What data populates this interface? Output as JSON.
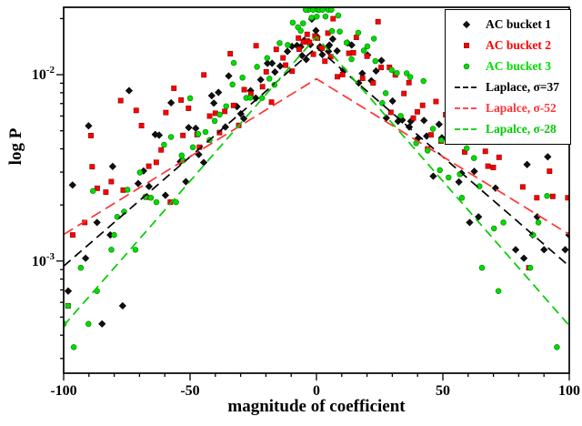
{
  "chart_data": {
    "type": "scatter",
    "title": "",
    "xlabel": "magnitude of coefficient",
    "ylabel": "log P",
    "xlim": [
      -100,
      100
    ],
    "ylog_min": 0.00025,
    "ylog_max": 0.023,
    "xticks": [
      -100,
      -50,
      0,
      50,
      100
    ],
    "x_minor_step": 10,
    "y_major_exponents": [
      -3,
      -2
    ],
    "grid": false,
    "legend_position": "top-right",
    "quant_step": 0.000115,
    "scatter_series": [
      {
        "name": "AC bucket 1",
        "marker": "diamond",
        "color": "#111111",
        "edge": "#000000",
        "peak": 0.018,
        "sigma": 36,
        "seed": 101,
        "noise_base": 0.15,
        "noise_tail": 0.6
      },
      {
        "name": "AC bucket 2",
        "marker": "square",
        "color": "#ff0000",
        "edge": "#990000",
        "peak": 0.016,
        "sigma": 50,
        "seed": 202,
        "noise_base": 0.16,
        "noise_tail": 0.6
      },
      {
        "name": "AC bucket 3",
        "marker": "circle",
        "color": "#00dd00",
        "edge": "#008800",
        "peak": 0.024,
        "sigma": 28,
        "seed": 303,
        "noise_base": 0.15,
        "noise_tail": 0.65
      }
    ],
    "line_series": [
      {
        "name": "Laplace, σ=37",
        "color": "#000000",
        "peak": 0.014,
        "sigma": 37,
        "dash": "10 6"
      },
      {
        "name": "Lapalce, σ-52",
        "color": "#ff3333",
        "peak": 0.0095,
        "sigma": 52,
        "dash": "12 6"
      },
      {
        "name": "Lapalce, σ-28",
        "color": "#00cc00",
        "peak": 0.016,
        "sigma": 28,
        "dash": "10 6"
      }
    ]
  }
}
